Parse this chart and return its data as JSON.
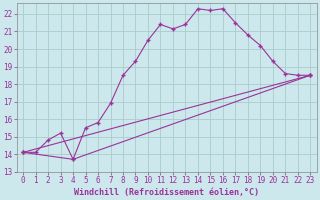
{
  "xlabel": "Windchill (Refroidissement éolien,°C)",
  "bg_color": "#cce8ec",
  "grid_color": "#aacccc",
  "line_color": "#993399",
  "xlim": [
    -0.5,
    23.5
  ],
  "ylim": [
    13,
    22.6
  ],
  "xticks": [
    0,
    1,
    2,
    3,
    4,
    5,
    6,
    7,
    8,
    9,
    10,
    11,
    12,
    13,
    14,
    15,
    16,
    17,
    18,
    19,
    20,
    21,
    22,
    23
  ],
  "yticks": [
    13,
    14,
    15,
    16,
    17,
    18,
    19,
    20,
    21,
    22
  ],
  "series1_x": [
    0,
    1,
    2,
    3,
    4,
    5,
    6,
    7,
    8,
    9,
    10,
    11,
    12,
    13,
    14,
    15,
    16,
    17,
    18,
    19,
    20,
    21,
    22,
    23
  ],
  "series1_y": [
    14.1,
    14.1,
    14.8,
    15.2,
    13.7,
    15.5,
    15.8,
    16.9,
    18.5,
    19.3,
    20.5,
    21.4,
    21.15,
    21.4,
    22.3,
    22.2,
    22.3,
    21.5,
    20.8,
    20.2,
    19.3,
    18.6,
    18.5,
    18.5
  ],
  "series2_x": [
    0,
    23
  ],
  "series2_y": [
    14.1,
    18.5
  ],
  "series3_x": [
    0,
    4,
    23
  ],
  "series3_y": [
    14.1,
    13.7,
    18.5
  ],
  "marker": "+",
  "marker_size": 3,
  "linewidth": 0.8,
  "tick_fontsize": 5.5,
  "xlabel_fontsize": 6.0
}
